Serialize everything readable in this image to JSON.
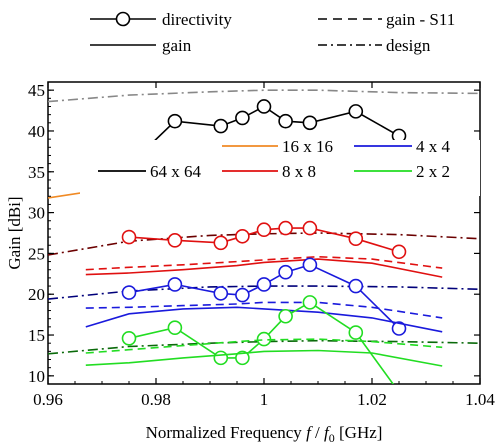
{
  "chart_data": {
    "type": "line",
    "xlabel": "Normalized Frequency f / f0 [GHz]",
    "xlabel_parts": {
      "prefix": "Normalized Frequency ",
      "f": "f",
      "slash": " / ",
      "f0": "f",
      "sub": "0",
      "suffix": " [GHz]"
    },
    "ylabel": "Gain [dBi]",
    "xlim": [
      0.96,
      1.04
    ],
    "ylim": [
      9,
      46
    ],
    "xticks": [
      0.96,
      0.98,
      1,
      1.02,
      1.04
    ],
    "xtick_labels": [
      "0.96",
      "0.98",
      "1",
      "1.02",
      "1.04"
    ],
    "yticks": [
      10,
      15,
      20,
      25,
      30,
      35,
      40,
      45
    ],
    "ytick_labels": [
      "10",
      "15",
      "20",
      "25",
      "30",
      "35",
      "40",
      "45"
    ],
    "style_legend": [
      {
        "label": "directivity",
        "style": "line-circle"
      },
      {
        "label": "gain - S11",
        "style": "dashed"
      },
      {
        "label": "gain",
        "style": "solid"
      },
      {
        "label": "design",
        "style": "dashdot"
      }
    ],
    "size_legend": [
      {
        "label": "16 x 16",
        "color": "#f08a24"
      },
      {
        "label": "4 x 4",
        "color": "#1a1adc"
      },
      {
        "label": "64 x 64",
        "color": "#000000"
      },
      {
        "label": "8 x 8",
        "color": "#e01010"
      },
      {
        "label": "2 x 2",
        "color": "#22dd22"
      }
    ],
    "series": [
      {
        "group": "64 x 64",
        "kind": "design",
        "color": "#888888",
        "x": [
          0.96,
          0.975,
          0.99,
          1.0,
          1.01,
          1.025,
          1.04
        ],
        "y": [
          43.6,
          44.4,
          44.8,
          45.0,
          45.0,
          44.7,
          44.6
        ]
      },
      {
        "group": "64 x 64",
        "kind": "directivity",
        "color": "#000000",
        "x": [
          0.975,
          0.9835,
          0.992,
          0.996,
          1.0,
          1.004,
          1.0085,
          1.017,
          1.025
        ],
        "y": [
          35.8,
          41.2,
          40.6,
          41.6,
          43.0,
          41.2,
          41.0,
          42.4,
          39.4
        ]
      },
      {
        "group": "16 x 16",
        "kind": "gain",
        "color": "#f08a24",
        "x": [
          0.96,
          0.97,
          0.975,
          0.985,
          0.995,
          1.0,
          1.01,
          1.02,
          1.025,
          1.04
        ],
        "y": [
          31.8,
          32.8,
          32.5,
          32.9,
          33.1,
          33.3,
          33.3,
          32.6,
          32.3,
          32.6
        ]
      },
      {
        "group": "8 x 8",
        "kind": "design",
        "color": "#6b0000",
        "x": [
          0.96,
          0.975,
          0.99,
          1.0,
          1.01,
          1.025,
          1.04
        ],
        "y": [
          24.8,
          26.5,
          27.2,
          27.4,
          27.5,
          27.3,
          26.8
        ]
      },
      {
        "group": "8 x 8",
        "kind": "directivity",
        "color": "#e01010",
        "x": [
          0.975,
          0.9835,
          0.992,
          0.996,
          1.0,
          1.004,
          1.0085,
          1.017,
          1.025
        ],
        "y": [
          27.0,
          26.6,
          26.3,
          27.1,
          27.9,
          28.1,
          28.1,
          26.8,
          25.2
        ]
      },
      {
        "group": "8 x 8",
        "kind": "gain - S11",
        "color": "#e01010",
        "x": [
          0.967,
          0.975,
          0.985,
          0.995,
          1.0,
          1.01,
          1.02,
          1.033
        ],
        "y": [
          23.0,
          23.3,
          23.6,
          24.0,
          24.2,
          24.6,
          24.3,
          23.2
        ]
      },
      {
        "group": "8 x 8",
        "kind": "gain",
        "color": "#e01010",
        "x": [
          0.967,
          0.975,
          0.985,
          0.995,
          1.0,
          1.01,
          1.02,
          1.033
        ],
        "y": [
          22.4,
          22.6,
          23.0,
          23.5,
          23.9,
          24.3,
          23.8,
          22.1
        ]
      },
      {
        "group": "4 x 4",
        "kind": "design",
        "color": "#00007a",
        "x": [
          0.96,
          0.975,
          0.99,
          1.0,
          1.01,
          1.025,
          1.04
        ],
        "y": [
          19.4,
          20.4,
          20.9,
          21.0,
          21.0,
          20.9,
          20.6
        ]
      },
      {
        "group": "4 x 4",
        "kind": "directivity",
        "color": "#1a1adc",
        "x": [
          0.975,
          0.9835,
          0.992,
          0.996,
          1.0,
          1.004,
          1.0085,
          1.017,
          1.025
        ],
        "y": [
          20.2,
          21.2,
          20.1,
          19.9,
          21.2,
          22.7,
          23.6,
          21.0,
          15.8
        ]
      },
      {
        "group": "4 x 4",
        "kind": "gain - S11",
        "color": "#1a1adc",
        "x": [
          0.967,
          0.975,
          0.985,
          0.995,
          1.0,
          1.01,
          1.02,
          1.033
        ],
        "y": [
          18.3,
          18.4,
          18.6,
          18.8,
          19.0,
          19.0,
          18.4,
          17.1
        ]
      },
      {
        "group": "4 x 4",
        "kind": "gain",
        "color": "#1a1adc",
        "x": [
          0.967,
          0.975,
          0.985,
          0.995,
          1.0,
          1.01,
          1.02,
          1.033
        ],
        "y": [
          16.0,
          17.6,
          18.2,
          18.4,
          18.2,
          17.8,
          17.1,
          15.4
        ]
      },
      {
        "group": "2 x 2",
        "kind": "design",
        "color": "#0a6a0a",
        "x": [
          0.96,
          0.975,
          0.99,
          1.0,
          1.01,
          1.025,
          1.04
        ],
        "y": [
          12.7,
          13.6,
          14.0,
          14.2,
          14.3,
          14.2,
          14.0
        ]
      },
      {
        "group": "2 x 2",
        "kind": "directivity",
        "color": "#22dd22",
        "x": [
          0.975,
          0.9835,
          0.992,
          0.996,
          1.0,
          1.004,
          1.0085,
          1.017,
          1.025
        ],
        "y": [
          14.6,
          15.9,
          12.2,
          12.2,
          14.5,
          17.3,
          19.0,
          15.3,
          8.0
        ]
      },
      {
        "group": "2 x 2",
        "kind": "gain - S11",
        "color": "#22dd22",
        "x": [
          0.967,
          0.975,
          0.985,
          0.995,
          1.0,
          1.01,
          1.02,
          1.033
        ],
        "y": [
          12.8,
          13.2,
          13.7,
          14.2,
          14.4,
          14.5,
          14.2,
          13.5
        ]
      },
      {
        "group": "2 x 2",
        "kind": "gain",
        "color": "#22dd22",
        "x": [
          0.967,
          0.975,
          0.985,
          0.995,
          1.0,
          1.01,
          1.02,
          1.033
        ],
        "y": [
          11.3,
          11.6,
          12.2,
          12.7,
          13.0,
          13.1,
          12.8,
          11.2
        ]
      }
    ]
  }
}
